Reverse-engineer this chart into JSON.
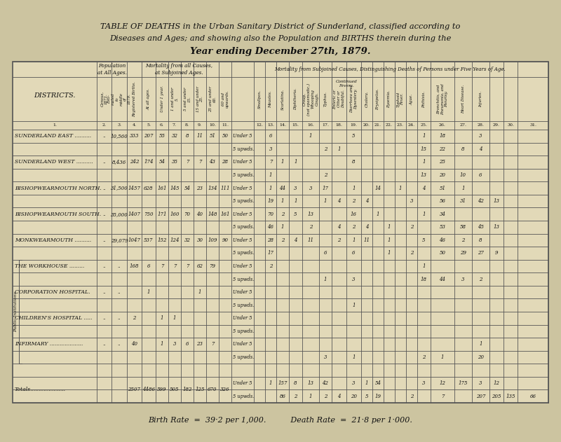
{
  "title_line1": "TABLE OF DEATHS in the Urban Sanitary District of Sunderland, classified according to",
  "title_line2": "Diseases and Ages; and showing also the Population and BIRTHS therein during the",
  "title_line3": "Year ending December 27th, 1879.",
  "bg_color": "#ccc4a0",
  "table_bg": "#e2d9b8",
  "line_color": "#555555",
  "text_color": "#111111",
  "footer": "Birth Rate  =  39·2 per 1,000.          Death Rate  =  21·8 per 1·000.",
  "rows": [
    {
      "district": "SUNDERLAND EAST ..........",
      "census": "..",
      "estimated": "10,560",
      "births": "333",
      "all_ages": "207",
      "u1": "55",
      "1to5": "32",
      "5to15": "8",
      "15to25": "11",
      "25to60": "51",
      "60up": "50",
      "sub": "Under 5",
      "measles": "6",
      "croup": "1",
      "diarrhoea": "5",
      "phthisis": "1",
      "bronchitis": "18",
      "injuries": "3"
    },
    {
      "district": "",
      "sub": "5 upwds.",
      "measles": "3",
      "typhus": "2",
      "continued": "1",
      "phthisis": "15",
      "bronchitis": "22",
      "heart": "8",
      "injuries": "4"
    },
    {
      "district": "SUNDERLAND WEST ..........",
      "census": "..",
      "estimated": "8,436",
      "births": "242",
      "all_ages": "174",
      "u1": "54",
      "1to5": "35",
      "5to15": "7",
      "15to25": "7",
      "25to60": "43",
      "60up": "28",
      "sub": "Under 5",
      "measles": "7",
      "scarlatina": "1",
      "diphtheria": "1",
      "diarrhoea": "8",
      "phthisis": "1",
      "bronchitis": "25"
    },
    {
      "district": "",
      "sub": "5 upwds.",
      "measles": "1",
      "typhus": "2",
      "phthisis": "13",
      "bronchitis": "20",
      "heart": "10",
      "injuries": "6"
    },
    {
      "district": "BISHOPWEARMOUTH NORTH.",
      "census": "..",
      "estimated": "31,500",
      "births": "1457",
      "all_ages": "628",
      "u1": "161",
      "1to5": "145",
      "5to15": "54",
      "15to25": "23",
      "25to60": "134",
      "60up": "111",
      "sub": "Under 5",
      "measles": "1",
      "scarlatina": "44",
      "diphtheria": "3",
      "croup": "3",
      "typhus": "17",
      "diarrhoea": "1",
      "erysipelas": "14",
      "typhoid": "1",
      "phthisis": "4",
      "bronchitis": "51",
      "heart": "1"
    },
    {
      "district": "",
      "sub": "5 upwds.",
      "measles": "19",
      "scarlatina": "1",
      "diphtheria": "1",
      "typhus": "1",
      "continued": "4",
      "diarrhoea": "2",
      "cholera": "4",
      "ague": "3",
      "bronchitis": "56",
      "heart": "31",
      "injuries": "42",
      "col31": "13"
    },
    {
      "district": "BISHOPWEARMOUTH SOUTH.",
      "census": "..",
      "estimated": "35,000",
      "births": "1407",
      "all_ages": "750",
      "u1": "171",
      "1to5": "160",
      "5to15": "70",
      "15to25": "40",
      "25to60": "148",
      "60up": "161",
      "sub": "Under 5",
      "measles": "70",
      "scarlatina": "2",
      "diphtheria": "5",
      "croup": "13",
      "diarrhoea": "16",
      "erysipelas": "1",
      "phthisis": "1",
      "bronchitis": "34"
    },
    {
      "district": "",
      "sub": "5 upwds.",
      "measles": "46",
      "scarlatina": "1",
      "croup": "2",
      "continued": "4",
      "diarrhoea": "2",
      "cholera": "4",
      "pyaemia": "1",
      "ague": "2",
      "bronchitis": "53",
      "heart": "58",
      "injuries": "45",
      "col31": "13"
    },
    {
      "district": "MONKWEARMOUTH ..........",
      "census": "..",
      "estimated": "29,079",
      "births": "1047",
      "all_ages": "537",
      "u1": "152",
      "1to5": "124",
      "5to15": "32",
      "15to25": "30",
      "25to60": "109",
      "60up": "90",
      "sub": "Under 5",
      "measles": "28",
      "scarlatina": "2",
      "diphtheria": "4",
      "croup": "11",
      "continued": "2",
      "diarrhoea": "1",
      "cholera": "11",
      "pyaemia": "1",
      "phthisis": "5",
      "bronchitis": "46",
      "heart": "2",
      "injuries": "8"
    },
    {
      "district": "",
      "sub": "5 upwds.",
      "measles": "17",
      "typhus": "6",
      "diarrhoea": "6",
      "pyaemia": "1",
      "ague": "2",
      "bronchitis": "50",
      "heart": "29",
      "injuries": "27",
      "col31": "9"
    },
    {
      "district": "THE WORKHOUSE .........",
      "census": "..",
      "estimated": "..",
      "births": "168",
      "all_ages": "6",
      "u1": "7",
      "1to5": "7",
      "5to15": "7",
      "15to25": "62",
      "25to60": "79",
      "sub": "Under 5",
      "measles": "2",
      "phthisis": "1"
    },
    {
      "district": "",
      "sub": "5 upwds.",
      "typhus": "1",
      "diarrhoea": "3",
      "phthisis": "18",
      "bronchitis": "44",
      "heart": "3",
      "injuries": "2"
    },
    {
      "district": "CORPORATION HOSPITAL.",
      "census": "..",
      "estimated": "..",
      "all_ages": "1",
      "15to25": "1",
      "sub": "Under 5"
    },
    {
      "district": "",
      "sub": "5 upwds.",
      "diarrhoea": "1"
    },
    {
      "district": "CHILDREN'S HOSPITAL .....",
      "census": "..",
      "estimated": "..",
      "births": "2",
      "u1": "1",
      "1to5": "1",
      "sub": "Under 5"
    },
    {
      "district": "",
      "sub": "5 upwds."
    },
    {
      "district": "INFIRMARY ....................",
      "census": "..",
      "estimated": "..",
      "births": "40",
      "u1": "1",
      "1to5": "3",
      "5to15": "6",
      "15to25": "23",
      "25to60": "7",
      "sub": "Under 5",
      "injuries": "1"
    },
    {
      "district": "",
      "sub": "5 upwds.",
      "typhus": "3",
      "diarrhoea": "1",
      "phthisis": "2",
      "bronchitis": "1",
      "injuries": "20"
    }
  ]
}
